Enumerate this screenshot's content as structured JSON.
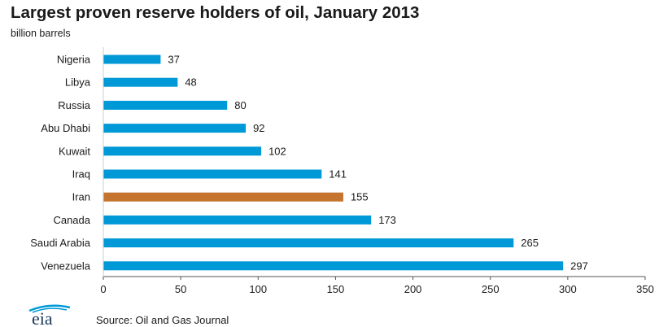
{
  "header": {
    "title": "Largest proven reserve holders of oil, January 2013",
    "subtitle": "billion barrels"
  },
  "footer": {
    "source": "Source: Oil and Gas Journal",
    "logo_text": "eia"
  },
  "colors": {
    "bar": "#0099D8",
    "highlight": "#C4742F",
    "axis": "#555555",
    "text": "#1a1a1a"
  },
  "chart_data": {
    "type": "bar",
    "orientation": "horizontal",
    "title": "Largest proven reserve holders of oil, January 2013",
    "ylabel": "billion barrels",
    "categories": [
      "Nigeria",
      "Libya",
      "Russia",
      "Abu Dhabi",
      "Kuwait",
      "Iraq",
      "Iran",
      "Canada",
      "Saudi Arabia",
      "Venezuela"
    ],
    "values": [
      37,
      48,
      80,
      92,
      102,
      141,
      155,
      173,
      265,
      297
    ],
    "highlight_category": "Iran",
    "xlim": [
      0,
      350
    ],
    "xticks": [
      0,
      50,
      100,
      150,
      200,
      250,
      300,
      350
    ],
    "grid": false,
    "data_labels": true
  }
}
